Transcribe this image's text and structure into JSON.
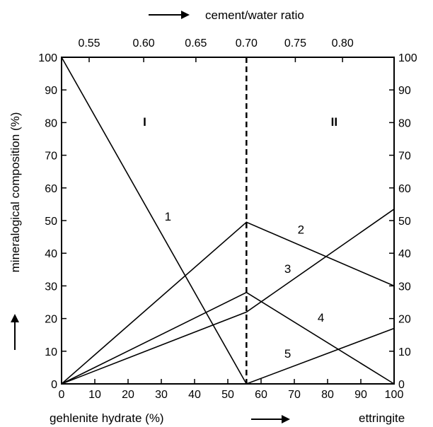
{
  "chart_data": {
    "type": "line",
    "xlabel": "gehlenite hydrate (%)",
    "xlabel_right": "ettringite",
    "ylabel": "mineralogical composition (%)",
    "top_axis_label": "cement/water ratio",
    "xlim": [
      0,
      100
    ],
    "ylim": [
      0,
      100
    ],
    "x_ticks": [
      "0",
      "10",
      "20",
      "30",
      "40",
      "50",
      "60",
      "70",
      "80",
      "90",
      "100"
    ],
    "y_ticks": [
      "0",
      "10",
      "20",
      "30",
      "40",
      "50",
      "60",
      "70",
      "80",
      "90",
      "100"
    ],
    "top_ticks": [
      {
        "label": "0.55",
        "x": 8.3
      },
      {
        "label": "0.60",
        "x": 24.7
      },
      {
        "label": "0.65",
        "x": 40.4
      },
      {
        "label": "0.70",
        "x": 55.6
      },
      {
        "label": "0.75",
        "x": 70.3
      },
      {
        "label": "0.80",
        "x": 84.5
      }
    ],
    "divider_x": 55.6,
    "regions": [
      {
        "label": "I",
        "x": 25,
        "y": 79
      },
      {
        "label": "II",
        "x": 82,
        "y": 79
      }
    ],
    "series": [
      {
        "name": "1",
        "points": [
          [
            0,
            100
          ],
          [
            55.6,
            0
          ]
        ],
        "label_pos": [
          32,
          50
        ]
      },
      {
        "name": "2",
        "points": [
          [
            0,
            0
          ],
          [
            55.6,
            49.5
          ],
          [
            100,
            30
          ]
        ],
        "label_pos": [
          72,
          46
        ]
      },
      {
        "name": "3",
        "points": [
          [
            0,
            0
          ],
          [
            55.6,
            22
          ],
          [
            100,
            53.5
          ]
        ],
        "label_pos": [
          68,
          34
        ]
      },
      {
        "name": "4",
        "points": [
          [
            0,
            0
          ],
          [
            55.6,
            28
          ],
          [
            100,
            0
          ]
        ],
        "label_pos": [
          78,
          19
        ]
      },
      {
        "name": "5",
        "points": [
          [
            55.6,
            0
          ],
          [
            100,
            17
          ]
        ],
        "label_pos": [
          68,
          8
        ]
      }
    ]
  }
}
